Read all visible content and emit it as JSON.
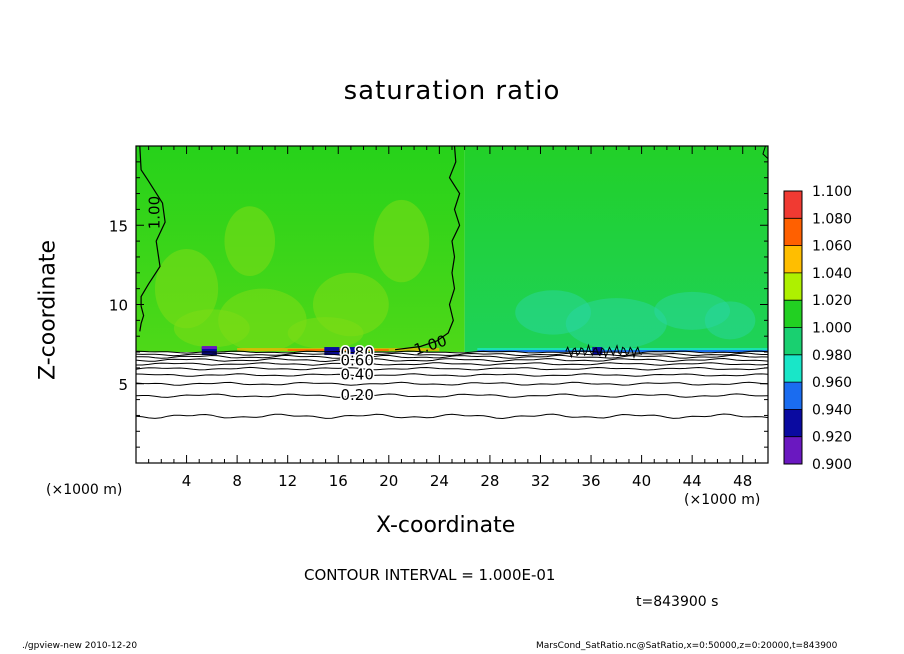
{
  "chart_data": {
    "type": "heatmap",
    "title": "saturation ratio",
    "xlabel": "X-coordinate",
    "ylabel": "Z-coordinate",
    "x_unit": "(×1000 m)",
    "xlim": [
      0,
      50
    ],
    "ylim": [
      0,
      20
    ],
    "x_ticks": [
      4,
      8,
      12,
      16,
      20,
      24,
      28,
      32,
      36,
      40,
      44,
      48
    ],
    "y_ticks": [
      5,
      10,
      15
    ],
    "colorbar": {
      "levels": [
        "1.100",
        "1.080",
        "1.060",
        "1.040",
        "1.020",
        "1.000",
        "0.980",
        "0.960",
        "0.940",
        "0.920",
        "0.900"
      ],
      "colors": [
        "#ff9a9a",
        "#f03a32",
        "#ff6000",
        "#ffbe00",
        "#aef000",
        "#22d022",
        "#19d070",
        "#19e6c8",
        "#1a6cf0",
        "#0a0aa0",
        "#6a18c0"
      ]
    },
    "field": {
      "inversion_height": 7,
      "left_region_value": 1.01,
      "right_region_value": 0.99,
      "divide_x": 26,
      "lower_layer_value_range": [
        0.0,
        0.9
      ]
    },
    "contour_labels": [
      {
        "text": "1.00",
        "x": 1.5,
        "y": 15.8,
        "rotation": -90
      },
      {
        "text": "1.00",
        "x": 23.3,
        "y": 7.4,
        "rotation": -18
      },
      {
        "text": "0.80",
        "x": 17.5,
        "y": 6.95,
        "rotation": 0
      },
      {
        "text": "0.60",
        "x": 17.5,
        "y": 6.45,
        "rotation": 0
      },
      {
        "text": "0.40",
        "x": 17.5,
        "y": 5.55,
        "rotation": 0
      },
      {
        "text": "0.20",
        "x": 17.5,
        "y": 4.25,
        "rotation": 0
      }
    ]
  },
  "contour_interval": "CONTOUR INTERVAL = 1.000E-01",
  "time_label": "t=843900 s",
  "footer_left": "./gpview-new   2010-12-20",
  "footer_right": "MarsCond_SatRatio.nc@SatRatio,x=0:50000,z=0:20000,t=843900"
}
